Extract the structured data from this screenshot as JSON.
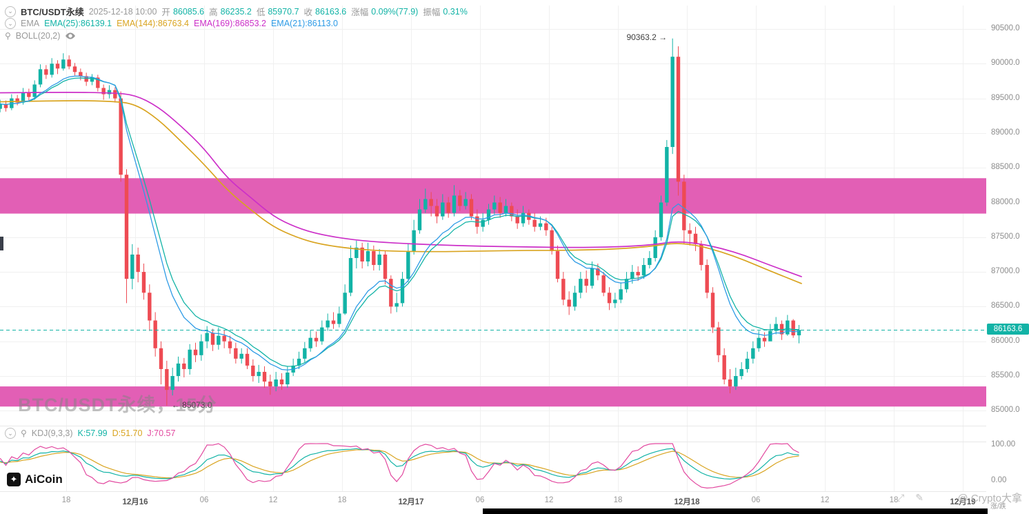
{
  "header": {
    "symbol": "BTC/USDT永续",
    "datetime": "2025-12-18 10:00",
    "ohlc": [
      {
        "label": "开",
        "value": "86085.6"
      },
      {
        "label": "高",
        "value": "86235.2"
      },
      {
        "label": "低",
        "value": "85970.7"
      },
      {
        "label": "收",
        "value": "86163.6"
      },
      {
        "label": "涨幅",
        "value": "0.09%(77.9)"
      },
      {
        "label": "振幅",
        "value": "0.31%"
      }
    ],
    "ema_title": "EMA",
    "ema_items": [
      {
        "text": "EMA(25):86139.1"
      },
      {
        "text": "EMA(144):86763.4"
      },
      {
        "text": "EMA(169):86853.2"
      },
      {
        "text": "EMA(21):86113.0"
      }
    ],
    "boll_label": "BOLL(20,2)"
  },
  "kdj_header": {
    "title": "KDJ(9,3,3)",
    "items": [
      {
        "text": "K:57.99"
      },
      {
        "text": "D:51.70"
      },
      {
        "text": "J:70.57"
      }
    ]
  },
  "annotations": {
    "high_label": "90363.2 →",
    "low_label": "← 85073.0",
    "current_price_label": "86163.6"
  },
  "watermark": "BTC/USDT永续，15分",
  "logo_text": "AiCoin",
  "credit": "@ Crypto大拿",
  "axis_extra_label": "涨/跌",
  "colors": {
    "up": "#12b3a6",
    "down": "#ee4b53",
    "band_pink": "#e25fb5",
    "ema_fast_1": "#12b3a6",
    "ema_fast_2": "#2e9be6",
    "ema_slow_144": "#d9a420",
    "ema_slow_169": "#cc2fc8",
    "kdj_k": "#12b3a6",
    "kdj_d": "#d9a420",
    "kdj_j": "#e2489f",
    "grid": "#f0f0f0",
    "axis_text": "#8c8c8c"
  },
  "chart_data": {
    "type": "candlestick",
    "title": "BTC/USDT永续 15分",
    "interval_hours": 0.5,
    "start_hour": 0,
    "first_open": 89350,
    "closes": [
      89420,
      89360,
      89500,
      89440,
      89580,
      89520,
      89700,
      89920,
      89840,
      90000,
      89930,
      90060,
      89960,
      89880,
      89820,
      89740,
      89800,
      89650,
      89560,
      89620,
      89500,
      88400,
      86900,
      87250,
      87000,
      86700,
      86300,
      85900,
      85600,
      85300,
      85500,
      85680,
      85600,
      85880,
      85800,
      86000,
      86120,
      85950,
      86080,
      86000,
      85900,
      85750,
      85820,
      85650,
      85500,
      85560,
      85420,
      85350,
      85450,
      85380,
      85550,
      85650,
      85750,
      85900,
      86050,
      86000,
      86200,
      86300,
      86250,
      86400,
      86700,
      87200,
      87350,
      87150,
      87300,
      87100,
      87250,
      86900,
      86500,
      86550,
      86900,
      87300,
      87600,
      87900,
      88050,
      87950,
      87800,
      88000,
      87850,
      88100,
      87950,
      88050,
      87800,
      87650,
      87750,
      87900,
      88000,
      87850,
      87950,
      87800,
      87700,
      87850,
      87750,
      87650,
      87700,
      87600,
      87300,
      86900,
      86600,
      86500,
      86700,
      86900,
      86800,
      87050,
      86950,
      86700,
      86550,
      86600,
      86750,
      86900,
      87000,
      86950,
      87100,
      87200,
      87500,
      88000,
      88800,
      90100,
      88300,
      87600,
      87550,
      87400,
      87100,
      86700,
      86200,
      85800,
      85450,
      85350,
      85500,
      85600,
      85750,
      85900,
      86050,
      86000,
      86150,
      86250,
      86100,
      86300,
      86085.6,
      86163.6
    ],
    "highs": [
      89480,
      89470,
      89560,
      89550,
      89650,
      89640,
      89760,
      89990,
      89980,
      90080,
      90050,
      90150,
      90120,
      90010,
      89930,
      89870,
      89850,
      89840,
      89700,
      89690,
      89660,
      89600,
      88480,
      87400,
      87350,
      87120,
      86820,
      86420,
      86000,
      85720,
      85620,
      85780,
      85760,
      85960,
      85980,
      86100,
      86220,
      86180,
      86200,
      86160,
      86080,
      85980,
      85900,
      85900,
      85740,
      85660,
      85640,
      85520,
      85560,
      85540,
      85640,
      85750,
      85850,
      85990,
      86160,
      86140,
      86300,
      86400,
      86420,
      86500,
      86820,
      87380,
      87450,
      87420,
      87420,
      87380,
      87330,
      87300,
      86950,
      86700,
      87000,
      87400,
      87750,
      88050,
      88200,
      88150,
      88050,
      88120,
      88080,
      88250,
      88180,
      88150,
      88120,
      87900,
      87850,
      87980,
      88100,
      88080,
      88050,
      88000,
      87900,
      87950,
      87900,
      87850,
      87800,
      87780,
      87650,
      87380,
      87000,
      86720,
      86800,
      87000,
      87020,
      87150,
      87120,
      87000,
      86780,
      86700,
      86850,
      87000,
      87100,
      87080,
      87200,
      87300,
      87600,
      88100,
      88900,
      90363.2,
      90250,
      88400,
      87700,
      87650,
      87450,
      87180,
      86780,
      86280,
      85900,
      85600,
      85620,
      85700,
      85850,
      86000,
      86150,
      86130,
      86250,
      86350,
      86300,
      86380,
      86320,
      86235.2
    ],
    "lows": [
      89300,
      89310,
      89330,
      89400,
      89410,
      89470,
      89480,
      89660,
      89780,
      89800,
      89850,
      89900,
      89920,
      89830,
      89760,
      89680,
      89690,
      89600,
      89480,
      89500,
      89440,
      88300,
      86550,
      86750,
      86850,
      86600,
      86150,
      85780,
      85380,
      85073,
      85220,
      85420,
      85480,
      85520,
      85700,
      85720,
      85900,
      85860,
      85880,
      85900,
      85820,
      85680,
      85680,
      85600,
      85420,
      85400,
      85330,
      85230,
      85280,
      85300,
      85330,
      85500,
      85600,
      85700,
      85850,
      85920,
      85950,
      86150,
      86180,
      86200,
      86380,
      86650,
      87050,
      87050,
      87080,
      87020,
      87020,
      86820,
      86400,
      86420,
      86500,
      86850,
      87250,
      87550,
      87850,
      87800,
      87700,
      87750,
      87780,
      87800,
      87880,
      87900,
      87750,
      87550,
      87580,
      87680,
      87830,
      87780,
      87800,
      87730,
      87620,
      87650,
      87680,
      87580,
      87600,
      87520,
      87250,
      86850,
      86520,
      86380,
      86440,
      86620,
      86700,
      86760,
      86880,
      86650,
      86450,
      86480,
      86550,
      86700,
      86830,
      86870,
      86900,
      87050,
      87150,
      87450,
      87950,
      88700,
      88100,
      87400,
      87380,
      87300,
      87020,
      86620,
      86120,
      85700,
      85380,
      85250,
      85300,
      85450,
      85550,
      85680,
      85850,
      85920,
      86050,
      86100,
      86020,
      86080,
      86050,
      85970.7
    ],
    "price_ticks": [
      {
        "v": 90500,
        "label": "90500.0"
      },
      {
        "v": 90000,
        "label": "90000.0"
      },
      {
        "v": 89500,
        "label": "89500.0"
      },
      {
        "v": 89000,
        "label": "89000.0"
      },
      {
        "v": 88500,
        "label": "88500.0"
      },
      {
        "v": 88000,
        "label": "88000.0"
      },
      {
        "v": 87500,
        "label": "87500.0"
      },
      {
        "v": 87000,
        "label": "87000.0"
      },
      {
        "v": 86500,
        "label": "86500.0"
      },
      {
        "v": 86000,
        "label": "86000.0"
      },
      {
        "v": 85500,
        "label": "85500.0"
      },
      {
        "v": 85000,
        "label": "85000.0"
      }
    ],
    "time_ticks": [
      {
        "t": 6,
        "label": "18"
      },
      {
        "t": 12,
        "label": "12月16"
      },
      {
        "t": 18,
        "label": "06"
      },
      {
        "t": 24,
        "label": "12"
      },
      {
        "t": 30,
        "label": "18"
      },
      {
        "t": 36,
        "label": "12月17"
      },
      {
        "t": 42,
        "label": "06"
      },
      {
        "t": 48,
        "label": "12"
      },
      {
        "t": 54,
        "label": "18"
      },
      {
        "t": 60,
        "label": "12月18"
      },
      {
        "t": 66,
        "label": "06"
      },
      {
        "t": 72,
        "label": "12"
      },
      {
        "t": 78,
        "label": "18"
      },
      {
        "t": 84,
        "label": "12月19"
      }
    ],
    "kdj_ticks": [
      {
        "v": 100,
        "label": "100.00"
      },
      {
        "v": 0,
        "label": "0.00"
      }
    ],
    "bands": [
      {
        "from": 88350,
        "to": 87840
      },
      {
        "from": 85350,
        "to": 85060
      }
    ],
    "ema_slow": [
      {
        "name": "EMA169",
        "color": "#cc2fc8",
        "points": [
          [
            0,
            89580
          ],
          [
            6,
            89590
          ],
          [
            10,
            89580
          ],
          [
            12,
            89550
          ],
          [
            14,
            89380
          ],
          [
            16,
            89100
          ],
          [
            18,
            88780
          ],
          [
            20,
            88350
          ],
          [
            22,
            88080
          ],
          [
            24,
            87800
          ],
          [
            26,
            87640
          ],
          [
            28,
            87540
          ],
          [
            31,
            87460
          ],
          [
            34,
            87420
          ],
          [
            38,
            87390
          ],
          [
            42,
            87370
          ],
          [
            46,
            87360
          ],
          [
            50,
            87350
          ],
          [
            54,
            87360
          ],
          [
            57,
            87390
          ],
          [
            59,
            87440
          ],
          [
            61,
            87410
          ],
          [
            63,
            87340
          ],
          [
            65,
            87240
          ],
          [
            67,
            87110
          ],
          [
            70,
            86930
          ]
        ]
      },
      {
        "name": "EMA144",
        "color": "#d9a420",
        "points": [
          [
            0,
            89450
          ],
          [
            6,
            89470
          ],
          [
            10,
            89460
          ],
          [
            12,
            89420
          ],
          [
            14,
            89200
          ],
          [
            16,
            88880
          ],
          [
            18,
            88550
          ],
          [
            20,
            88180
          ],
          [
            22,
            87900
          ],
          [
            24,
            87650
          ],
          [
            26,
            87500
          ],
          [
            28,
            87400
          ],
          [
            31,
            87330
          ],
          [
            34,
            87300
          ],
          [
            38,
            87290
          ],
          [
            42,
            87300
          ],
          [
            46,
            87310
          ],
          [
            50,
            87310
          ],
          [
            54,
            87330
          ],
          [
            57,
            87370
          ],
          [
            59,
            87420
          ],
          [
            61,
            87380
          ],
          [
            63,
            87290
          ],
          [
            65,
            87170
          ],
          [
            67,
            87030
          ],
          [
            70,
            86830
          ]
        ]
      }
    ],
    "ema_fast": [
      {
        "name": "EMA25",
        "period": 13,
        "color": "#12b3a6"
      },
      {
        "name": "EMA21",
        "period": 11,
        "color": "#2e9be6"
      }
    ],
    "kdj": {
      "period": 9,
      "k_smooth": 3,
      "d_smooth": 3
    },
    "current_price": 86163.6,
    "high_annotation": {
      "price": 90363.2
    },
    "low_annotation": {
      "price": 85073.0
    }
  }
}
